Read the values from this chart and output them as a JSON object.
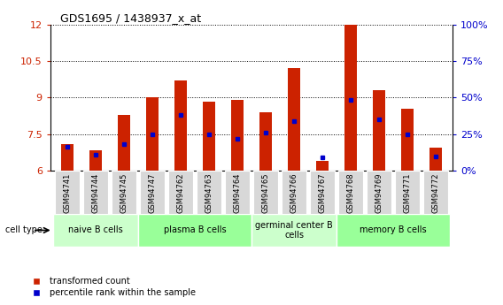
{
  "title": "GDS1695 / 1438937_x_at",
  "samples": [
    "GSM94741",
    "GSM94744",
    "GSM94745",
    "GSM94747",
    "GSM94762",
    "GSM94763",
    "GSM94764",
    "GSM94765",
    "GSM94766",
    "GSM94767",
    "GSM94768",
    "GSM94769",
    "GSM94771",
    "GSM94772"
  ],
  "transformed_count": [
    7.1,
    6.85,
    8.3,
    9.0,
    9.7,
    8.85,
    8.9,
    8.4,
    10.2,
    6.4,
    12.0,
    9.3,
    8.55,
    6.95
  ],
  "percentile_rank": [
    7.0,
    6.65,
    7.1,
    7.5,
    8.3,
    7.5,
    7.3,
    7.55,
    8.05,
    6.55,
    8.9,
    8.1,
    7.5,
    6.6
  ],
  "y_min": 6.0,
  "y_max": 12.0,
  "y_ticks_left": [
    6,
    7.5,
    9,
    10.5,
    12
  ],
  "y_ticks_right_vals": [
    0,
    25,
    50,
    75,
    100
  ],
  "cell_groups": [
    {
      "label": "naive B cells",
      "start": 0,
      "end": 3,
      "color": "#ccffcc"
    },
    {
      "label": "plasma B cells",
      "start": 3,
      "end": 7,
      "color": "#99ff99"
    },
    {
      "label": "germinal center B\ncells",
      "start": 7,
      "end": 10,
      "color": "#ccffcc"
    },
    {
      "label": "memory B cells",
      "start": 10,
      "end": 14,
      "color": "#99ff99"
    }
  ],
  "bar_color": "#cc2200",
  "marker_color": "#0000cc",
  "tick_label_bg": "#d8d8d8",
  "xlabel_color": "#cc2200",
  "ylabel_right_color": "#0000cc",
  "bar_width": 0.45
}
